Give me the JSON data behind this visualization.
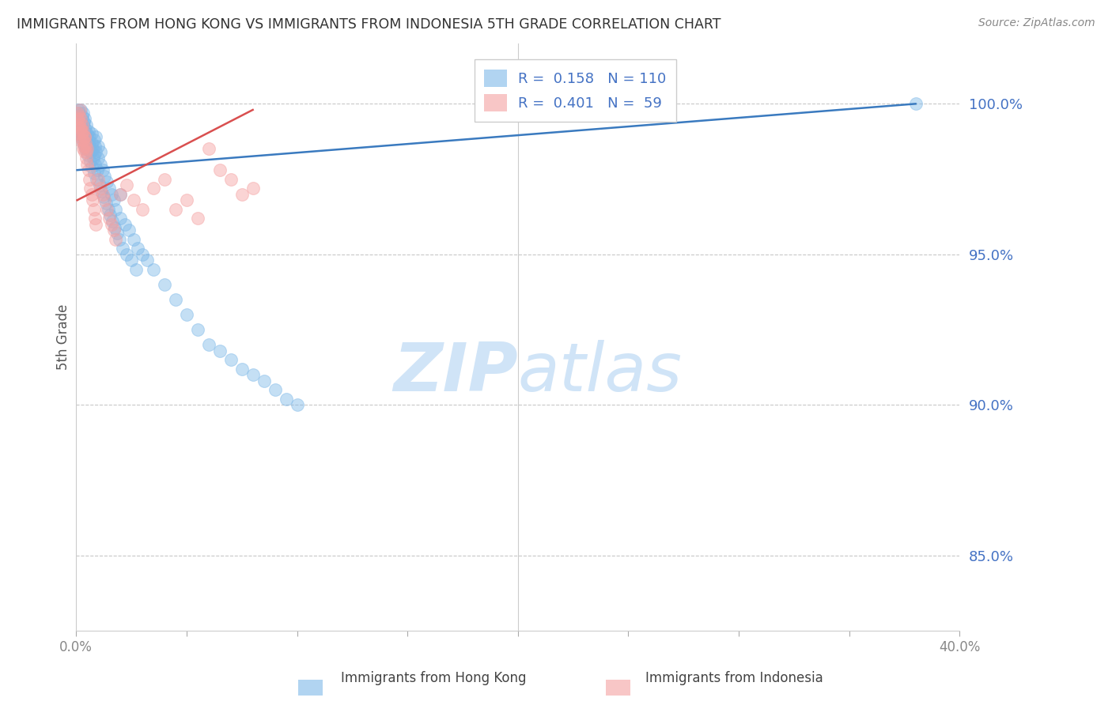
{
  "title": "IMMIGRANTS FROM HONG KONG VS IMMIGRANTS FROM INDONESIA 5TH GRADE CORRELATION CHART",
  "source": "Source: ZipAtlas.com",
  "ylabel": "5th Grade",
  "y_ticks": [
    85.0,
    90.0,
    95.0,
    100.0
  ],
  "x_lim": [
    0.0,
    40.0
  ],
  "y_lim": [
    82.5,
    102.0
  ],
  "blue_R": 0.158,
  "blue_N": 110,
  "pink_R": 0.401,
  "pink_N": 59,
  "blue_color": "#7db8e8",
  "pink_color": "#f4a0a0",
  "blue_line_color": "#3a7abf",
  "pink_line_color": "#d94f4f",
  "legend_label_blue": "Immigrants from Hong Kong",
  "legend_label_pink": "Immigrants from Indonesia",
  "watermark_color": "#d0e4f7",
  "title_color": "#333333",
  "axis_label_color": "#4472c4",
  "grid_color": "#c8c8c8",
  "background_color": "#ffffff",
  "blue_x": [
    0.05,
    0.08,
    0.1,
    0.1,
    0.12,
    0.15,
    0.15,
    0.18,
    0.2,
    0.2,
    0.22,
    0.25,
    0.25,
    0.28,
    0.3,
    0.3,
    0.32,
    0.35,
    0.35,
    0.38,
    0.4,
    0.4,
    0.42,
    0.45,
    0.45,
    0.48,
    0.5,
    0.5,
    0.55,
    0.55,
    0.6,
    0.6,
    0.65,
    0.7,
    0.7,
    0.75,
    0.8,
    0.8,
    0.85,
    0.9,
    0.9,
    1.0,
    1.0,
    1.1,
    1.1,
    1.2,
    1.3,
    1.4,
    1.5,
    1.6,
    1.7,
    1.8,
    2.0,
    2.0,
    2.2,
    2.4,
    2.6,
    2.8,
    3.0,
    3.2,
    3.5,
    4.0,
    4.5,
    5.0,
    5.5,
    6.0,
    6.5,
    7.0,
    7.5,
    8.0,
    8.5,
    9.0,
    9.5,
    10.0,
    0.06,
    0.09,
    0.13,
    0.17,
    0.22,
    0.27,
    0.32,
    0.37,
    0.42,
    0.47,
    0.52,
    0.57,
    0.62,
    0.67,
    0.72,
    0.77,
    0.82,
    0.87,
    0.92,
    0.97,
    1.05,
    1.15,
    1.25,
    1.35,
    1.45,
    1.55,
    1.65,
    1.75,
    1.85,
    1.95,
    2.1,
    2.3,
    2.5,
    2.7,
    38.0
  ],
  "blue_y": [
    99.2,
    99.5,
    99.8,
    99.0,
    99.6,
    99.3,
    99.7,
    99.1,
    99.4,
    99.8,
    99.0,
    99.5,
    99.2,
    99.6,
    99.3,
    99.7,
    99.0,
    99.4,
    99.1,
    99.5,
    99.2,
    98.8,
    99.0,
    98.9,
    99.3,
    98.7,
    99.0,
    98.5,
    98.8,
    99.1,
    98.6,
    98.9,
    98.4,
    98.7,
    99.0,
    98.5,
    98.8,
    98.3,
    98.6,
    98.4,
    98.9,
    98.2,
    98.6,
    98.0,
    98.4,
    97.8,
    97.6,
    97.4,
    97.2,
    97.0,
    96.8,
    96.5,
    96.2,
    97.0,
    96.0,
    95.8,
    95.5,
    95.2,
    95.0,
    94.8,
    94.5,
    94.0,
    93.5,
    93.0,
    92.5,
    92.0,
    91.8,
    91.5,
    91.2,
    91.0,
    90.8,
    90.5,
    90.2,
    90.0,
    99.3,
    99.6,
    99.1,
    99.4,
    98.9,
    99.2,
    98.7,
    99.0,
    98.5,
    98.8,
    98.3,
    98.6,
    98.1,
    98.4,
    97.9,
    98.2,
    97.7,
    98.0,
    97.5,
    97.8,
    97.3,
    97.1,
    96.9,
    96.7,
    96.5,
    96.3,
    96.1,
    95.9,
    95.7,
    95.5,
    95.2,
    95.0,
    94.8,
    94.5,
    100.0
  ],
  "blue_trend_x": [
    0.05,
    38.0
  ],
  "blue_trend_y": [
    97.8,
    100.0
  ],
  "pink_x": [
    0.05,
    0.08,
    0.1,
    0.12,
    0.15,
    0.18,
    0.2,
    0.22,
    0.25,
    0.28,
    0.3,
    0.32,
    0.35,
    0.38,
    0.4,
    0.42,
    0.45,
    0.48,
    0.5,
    0.55,
    0.6,
    0.65,
    0.7,
    0.75,
    0.8,
    0.85,
    0.9,
    1.0,
    1.1,
    1.2,
    1.3,
    1.4,
    1.5,
    1.6,
    1.7,
    1.8,
    2.0,
    2.3,
    2.6,
    3.0,
    3.5,
    4.0,
    4.5,
    5.0,
    5.5,
    6.0,
    6.5,
    7.0,
    7.5,
    8.0,
    0.07,
    0.13,
    0.17,
    0.23,
    0.27,
    0.33,
    0.37,
    0.43,
    0.47
  ],
  "pink_y": [
    99.5,
    99.7,
    99.3,
    99.6,
    99.4,
    99.8,
    99.2,
    99.5,
    99.0,
    99.3,
    98.8,
    99.1,
    98.6,
    98.9,
    98.4,
    98.7,
    98.2,
    98.5,
    98.0,
    97.8,
    97.5,
    97.2,
    97.0,
    96.8,
    96.5,
    96.2,
    96.0,
    97.5,
    97.2,
    97.0,
    96.8,
    96.5,
    96.2,
    96.0,
    95.8,
    95.5,
    97.0,
    97.3,
    96.8,
    96.5,
    97.2,
    97.5,
    96.5,
    96.8,
    96.2,
    98.5,
    97.8,
    97.5,
    97.0,
    97.2,
    99.0,
    98.8,
    99.2,
    99.1,
    98.8,
    98.5,
    98.9,
    98.6,
    98.4
  ],
  "pink_trend_x": [
    0.05,
    8.0
  ],
  "pink_trend_y": [
    96.8,
    99.8
  ]
}
